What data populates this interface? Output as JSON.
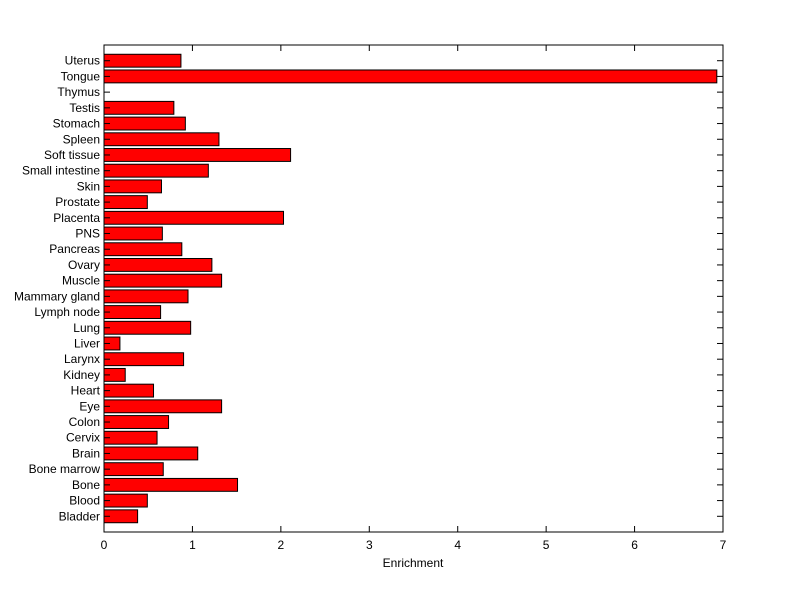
{
  "chart_data": {
    "type": "bar",
    "orientation": "horizontal",
    "xlabel": "Enrichment",
    "ylabel": "",
    "xlim": [
      0,
      7
    ],
    "xticks": [
      0,
      1,
      2,
      3,
      4,
      5,
      6,
      7
    ],
    "grid": false,
    "bar_color": "#ff0000",
    "categories": [
      "Uterus",
      "Tongue",
      "Thymus",
      "Testis",
      "Stomach",
      "Spleen",
      "Soft tissue",
      "Small intestine",
      "Skin",
      "Prostate",
      "Placenta",
      "PNS",
      "Pancreas",
      "Ovary",
      "Muscle",
      "Mammary gland",
      "Lymph node",
      "Lung",
      "Liver",
      "Larynx",
      "Kidney",
      "Heart",
      "Eye",
      "Colon",
      "Cervix",
      "Brain",
      "Bone marrow",
      "Bone",
      "Blood",
      "Bladder"
    ],
    "values": [
      0.87,
      6.93,
      0,
      0.79,
      0.92,
      1.3,
      2.11,
      1.18,
      0.65,
      0.49,
      2.03,
      0.66,
      0.88,
      1.22,
      1.33,
      0.95,
      0.64,
      0.98,
      0.18,
      0.9,
      0.24,
      0.56,
      1.33,
      0.73,
      0.6,
      1.06,
      0.67,
      1.51,
      0.49,
      0.38
    ]
  }
}
